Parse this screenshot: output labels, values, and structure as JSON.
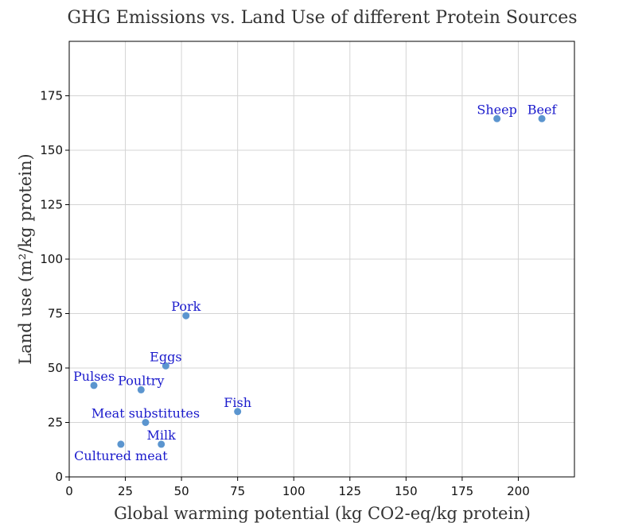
{
  "chart_data": {
    "type": "scatter",
    "title": "GHG Emissions vs. Land Use of different Protein Sources",
    "xlabel": "Global warming potential (kg CO2-eq/kg protein)",
    "ylabel": "Land use (m²/kg protein)",
    "xlim": [
      0,
      225
    ],
    "ylim": [
      0,
      200
    ],
    "xticks": [
      0,
      25,
      50,
      75,
      100,
      125,
      150,
      175,
      200
    ],
    "yticks": [
      0,
      25,
      50,
      75,
      100,
      125,
      150,
      175
    ],
    "grid": true,
    "point_color": "#5b95cf",
    "label_color": "#1a1acc",
    "points": [
      {
        "label": "Beef",
        "x": 210.5,
        "y": 164.5
      },
      {
        "label": "Sheep",
        "x": 190.5,
        "y": 164.5
      },
      {
        "label": "Pork",
        "x": 52,
        "y": 74
      },
      {
        "label": "Eggs",
        "x": 43,
        "y": 51
      },
      {
        "label": "Pulses",
        "x": 11,
        "y": 42
      },
      {
        "label": "Poultry",
        "x": 32,
        "y": 40
      },
      {
        "label": "Fish",
        "x": 75,
        "y": 30
      },
      {
        "label": "Meat substitutes",
        "x": 34,
        "y": 25
      },
      {
        "label": "Milk",
        "x": 41,
        "y": 15
      },
      {
        "label": "Cultured meat",
        "x": 23,
        "y": 15
      }
    ]
  }
}
